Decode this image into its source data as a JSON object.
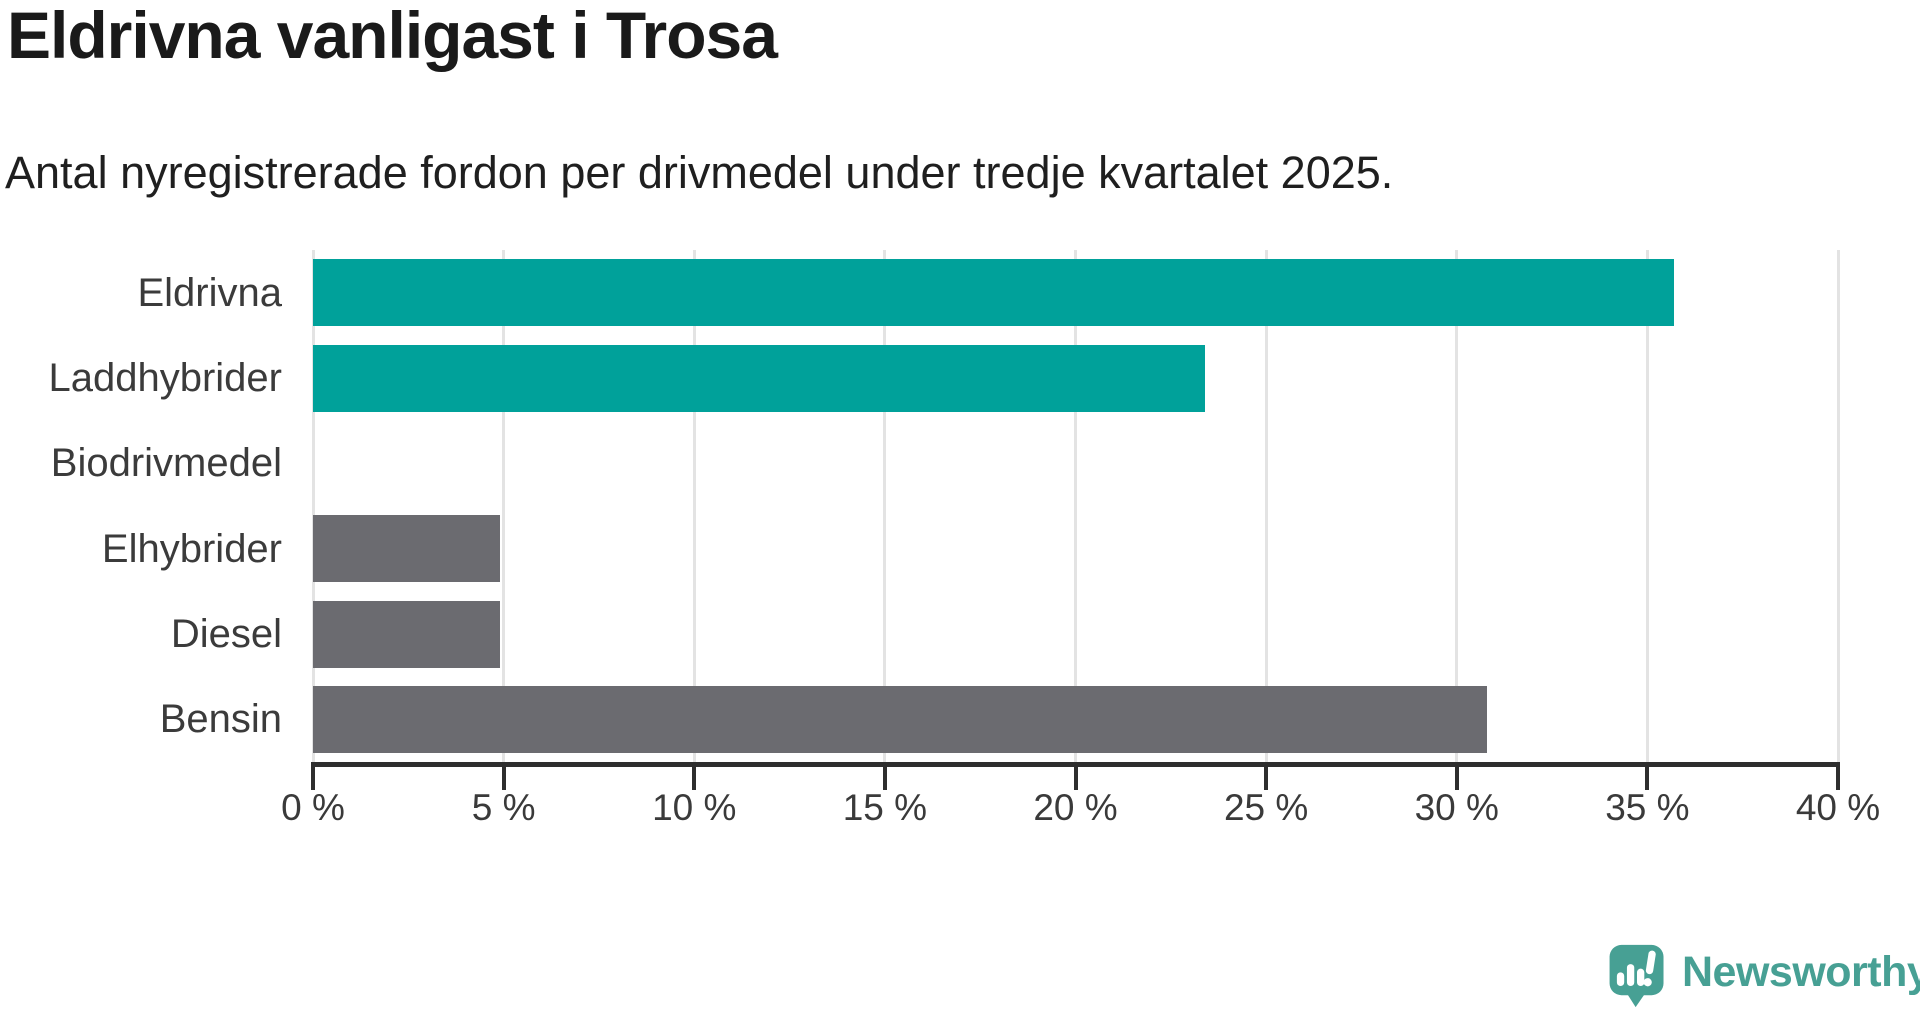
{
  "header": {
    "title": "Eldrivna vanligast i Trosa",
    "subtitle": "Antal nyregistrerade fordon per drivmedel under tredje kvartalet 2025."
  },
  "chart_data": {
    "type": "bar",
    "orientation": "horizontal",
    "title": "Eldrivna vanligast i Trosa",
    "subtitle": "Antal nyregistrerade fordon per drivmedel under tredje kvartalet 2025.",
    "categories": [
      "Eldrivna",
      "Laddhybrider",
      "Biodrivmedel",
      "Elhybrider",
      "Diesel",
      "Bensin"
    ],
    "values": [
      35.7,
      23.4,
      0,
      4.9,
      4.9,
      30.8
    ],
    "unit": "%",
    "bar_colors": [
      "#00a19a",
      "#00a19a",
      "#00a19a",
      "#6b6b70",
      "#6b6b70",
      "#6b6b70"
    ],
    "xlabel": "",
    "ylabel": "",
    "xlim": [
      0,
      40
    ],
    "xticks": [
      0,
      5,
      10,
      15,
      20,
      25,
      30,
      35,
      40
    ],
    "xtick_labels": [
      "0 %",
      "5 %",
      "10 %",
      "15 %",
      "20 %",
      "25 %",
      "30 %",
      "35 %",
      "40 %"
    ],
    "grid": "vertical-on",
    "legend": "none"
  },
  "colors": {
    "teal": "#00a19a",
    "gray": "#6b6b70",
    "gridline": "#e3e3e3",
    "axis": "#2e2e2e",
    "tick_text": "#3a3a3a",
    "label_text": "#3b3b3b",
    "logo_teal": "#47a094"
  },
  "branding": {
    "logo_text": "Newsworthy",
    "logo_icon": "speech-bubble-bar-chart-exclamation-icon"
  }
}
